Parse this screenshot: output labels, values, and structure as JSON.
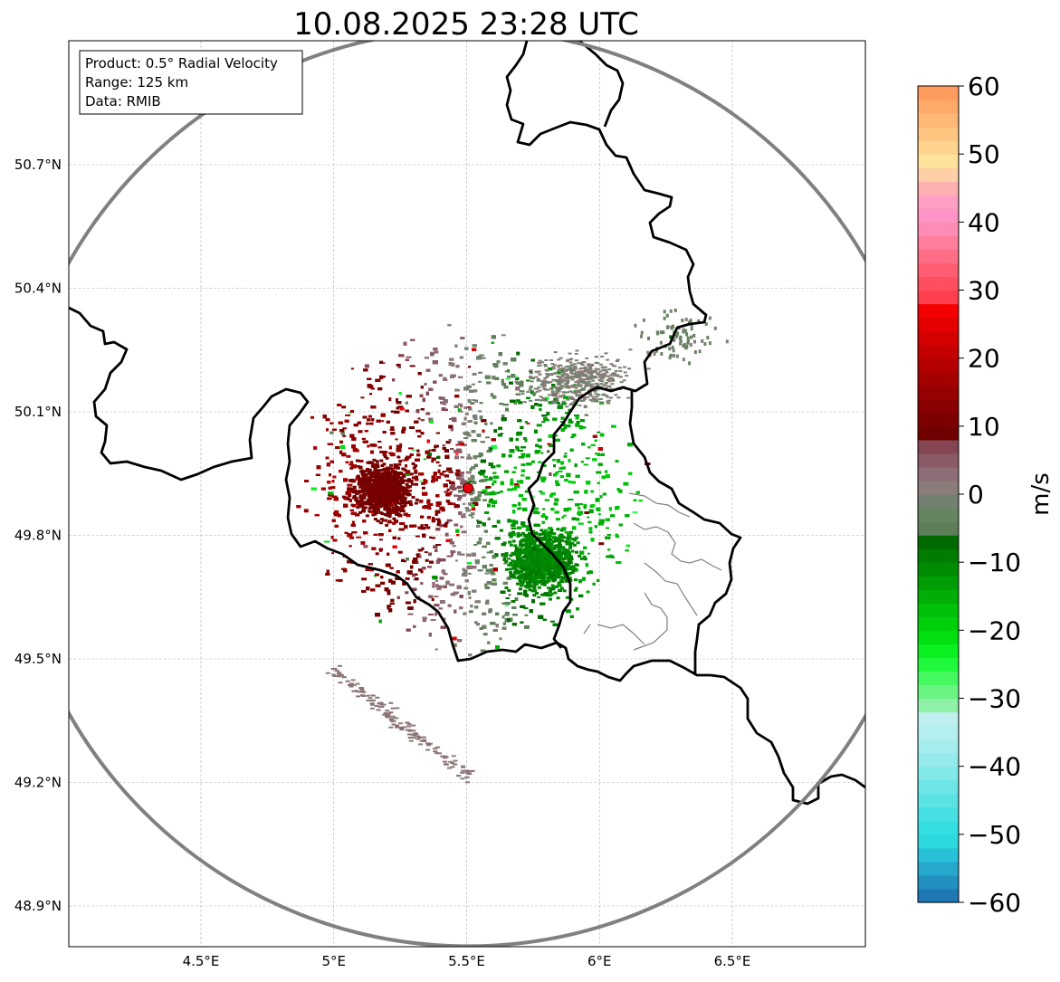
{
  "title": "10.08.2025 23:28 UTC",
  "info_box": {
    "product": "Product: 0.5° Radial Velocity",
    "range": "Range: 125 km",
    "data_source": "Data: RMIB"
  },
  "map": {
    "lon_range": [
      4.0,
      7.0
    ],
    "lat_range": [
      48.8,
      51.0
    ],
    "lat_ticks": [
      {
        "value": 48.9,
        "label": "48.9°N"
      },
      {
        "value": 49.2,
        "label": "49.2°N"
      },
      {
        "value": 49.5,
        "label": "49.5°N"
      },
      {
        "value": 49.8,
        "label": "49.8°N"
      },
      {
        "value": 50.1,
        "label": "50.1°N"
      },
      {
        "value": 50.4,
        "label": "50.4°N"
      },
      {
        "value": 50.7,
        "label": "50.7°N"
      }
    ],
    "lon_ticks": [
      {
        "value": 4.5,
        "label": "4.5°E"
      },
      {
        "value": 5.0,
        "label": "5°E"
      },
      {
        "value": 5.5,
        "label": "5.5°E"
      },
      {
        "value": 6.0,
        "label": "6°E"
      },
      {
        "value": 6.5,
        "label": "6.5°E"
      }
    ],
    "radar_site": {
      "lon": 5.505,
      "lat": 49.915
    },
    "range_ring_km": 125,
    "colors": {
      "border": "#000000",
      "province": "#808080",
      "range_ring": "#808080",
      "grid": "#b0b0b0",
      "site": "#e8000b"
    }
  },
  "colorbar": {
    "label": "m/s",
    "min": -60,
    "max": 60,
    "ticks": [
      {
        "value": 60,
        "label": "60"
      },
      {
        "value": 50,
        "label": "50"
      },
      {
        "value": 40,
        "label": "40"
      },
      {
        "value": 30,
        "label": "30"
      },
      {
        "value": 20,
        "label": "20"
      },
      {
        "value": 10,
        "label": "10"
      },
      {
        "value": 0,
        "label": "0"
      },
      {
        "value": -10,
        "label": "−10"
      },
      {
        "value": -20,
        "label": "−20"
      },
      {
        "value": -30,
        "label": "−30"
      },
      {
        "value": -40,
        "label": "−40"
      },
      {
        "value": -50,
        "label": "−50"
      },
      {
        "value": -60,
        "label": "−60"
      }
    ],
    "bins": [
      {
        "from": -60,
        "to": -58,
        "color": "#1f77b4"
      },
      {
        "from": -58,
        "to": -56,
        "color": "#2290c0"
      },
      {
        "from": -56,
        "to": -54,
        "color": "#25a8cc"
      },
      {
        "from": -54,
        "to": -52,
        "color": "#28c0d6"
      },
      {
        "from": -52,
        "to": -50,
        "color": "#2bd8dc"
      },
      {
        "from": -50,
        "to": -48,
        "color": "#34dde0"
      },
      {
        "from": -48,
        "to": -46,
        "color": "#46e0e2"
      },
      {
        "from": -46,
        "to": -44,
        "color": "#5ae2e4"
      },
      {
        "from": -44,
        "to": -42,
        "color": "#6ee5e6"
      },
      {
        "from": -42,
        "to": -40,
        "color": "#82e8e8"
      },
      {
        "from": -40,
        "to": -38,
        "color": "#94eaea"
      },
      {
        "from": -38,
        "to": -36,
        "color": "#a5ecec"
      },
      {
        "from": -36,
        "to": -34,
        "color": "#b4eeee"
      },
      {
        "from": -34,
        "to": -32,
        "color": "#bfefef"
      },
      {
        "from": -32,
        "to": -30,
        "color": "#8ff0a8"
      },
      {
        "from": -30,
        "to": -28,
        "color": "#6af583"
      },
      {
        "from": -28,
        "to": -26,
        "color": "#45f860"
      },
      {
        "from": -26,
        "to": -24,
        "color": "#1ff93c"
      },
      {
        "from": -24,
        "to": -22,
        "color": "#0af020"
      },
      {
        "from": -22,
        "to": -20,
        "color": "#00e010"
      },
      {
        "from": -20,
        "to": -18,
        "color": "#00d00a"
      },
      {
        "from": -18,
        "to": -16,
        "color": "#00c008"
      },
      {
        "from": -16,
        "to": -14,
        "color": "#00ae06"
      },
      {
        "from": -14,
        "to": -12,
        "color": "#009e04"
      },
      {
        "from": -12,
        "to": -10,
        "color": "#008c02"
      },
      {
        "from": -10,
        "to": -8,
        "color": "#007c00"
      },
      {
        "from": -8,
        "to": -6,
        "color": "#006a00"
      },
      {
        "from": -6,
        "to": -4,
        "color": "#5e7e5a"
      },
      {
        "from": -4,
        "to": -2,
        "color": "#66845f"
      },
      {
        "from": -2,
        "to": 0,
        "color": "#738170"
      },
      {
        "from": 0,
        "to": 2,
        "color": "#8a7d79"
      },
      {
        "from": 2,
        "to": 4,
        "color": "#8e6e76"
      },
      {
        "from": 4,
        "to": 6,
        "color": "#8a5a66"
      },
      {
        "from": 6,
        "to": 8,
        "color": "#844652"
      },
      {
        "from": 8,
        "to": 10,
        "color": "#700000"
      },
      {
        "from": 10,
        "to": 12,
        "color": "#7c0000"
      },
      {
        "from": 12,
        "to": 14,
        "color": "#880000"
      },
      {
        "from": 14,
        "to": 16,
        "color": "#960000"
      },
      {
        "from": 16,
        "to": 18,
        "color": "#a40000"
      },
      {
        "from": 18,
        "to": 20,
        "color": "#b40000"
      },
      {
        "from": 20,
        "to": 22,
        "color": "#c40000"
      },
      {
        "from": 22,
        "to": 24,
        "color": "#d40000"
      },
      {
        "from": 24,
        "to": 26,
        "color": "#e40000"
      },
      {
        "from": 26,
        "to": 28,
        "color": "#f40000"
      },
      {
        "from": 28,
        "to": 30,
        "color": "#ff3e4e"
      },
      {
        "from": 30,
        "to": 32,
        "color": "#ff4e60"
      },
      {
        "from": 32,
        "to": 34,
        "color": "#ff5e72"
      },
      {
        "from": 34,
        "to": 36,
        "color": "#ff6e86"
      },
      {
        "from": 36,
        "to": 38,
        "color": "#ff7e9c"
      },
      {
        "from": 38,
        "to": 40,
        "color": "#ff8cb4"
      },
      {
        "from": 40,
        "to": 42,
        "color": "#ff94c6"
      },
      {
        "from": 42,
        "to": 44,
        "color": "#ffa0c4"
      },
      {
        "from": 44,
        "to": 46,
        "color": "#ffb0b0"
      },
      {
        "from": 46,
        "to": 48,
        "color": "#ffd0a8"
      },
      {
        "from": 48,
        "to": 50,
        "color": "#ffe29c"
      },
      {
        "from": 50,
        "to": 52,
        "color": "#ffd48e"
      },
      {
        "from": 52,
        "to": 54,
        "color": "#ffc682"
      },
      {
        "from": 54,
        "to": 56,
        "color": "#ffb876"
      },
      {
        "from": 56,
        "to": 58,
        "color": "#ffaa6a"
      },
      {
        "from": 58,
        "to": 60,
        "color": "#ff9c5e"
      }
    ]
  }
}
